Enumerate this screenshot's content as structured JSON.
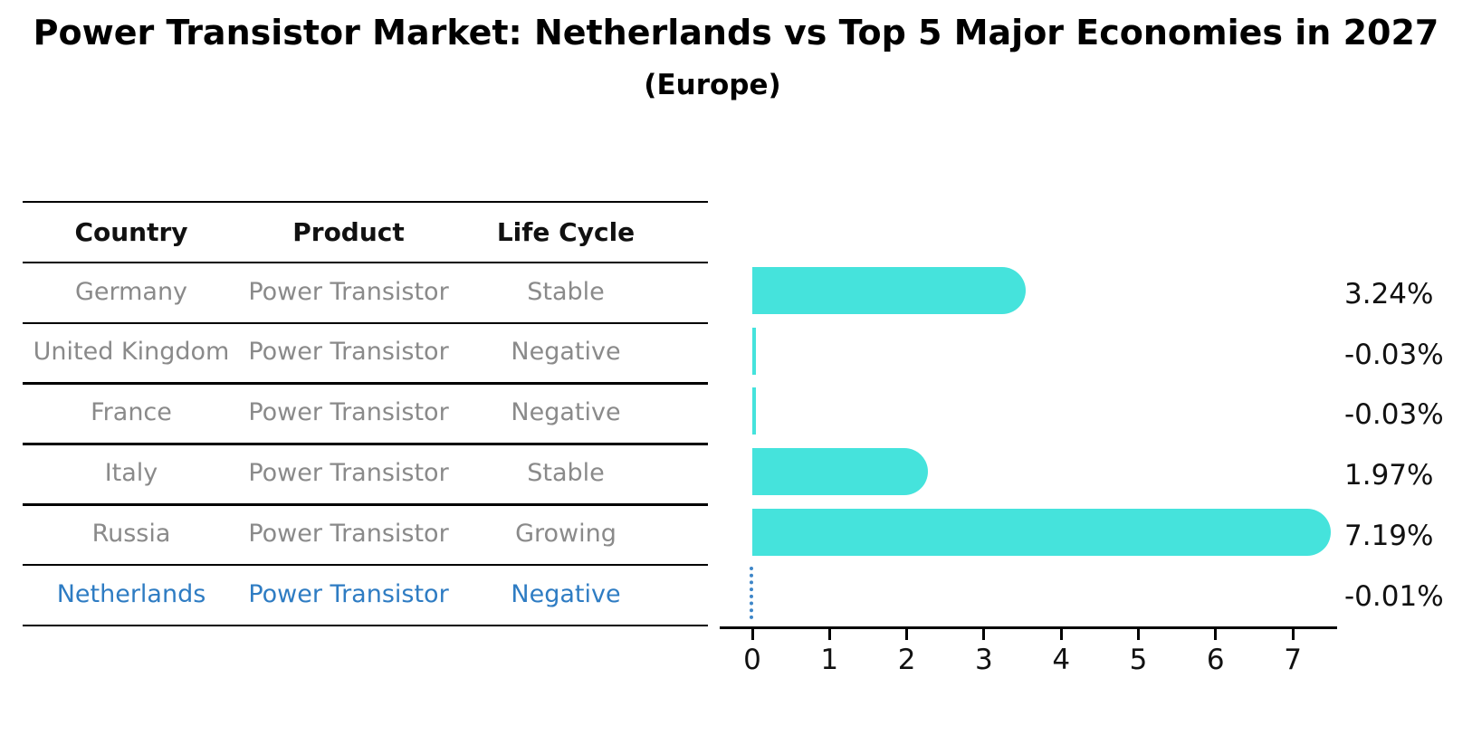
{
  "header": {
    "title": "Power Transistor Market: Netherlands vs Top 5 Major Economies in 2027",
    "subtitle": "(Europe)"
  },
  "table": {
    "columns": [
      "Country",
      "Product",
      "Life Cycle"
    ],
    "rows": [
      {
        "country": "Germany",
        "product": "Power Transistor",
        "life_cycle": "Stable",
        "highlighted": false
      },
      {
        "country": "United Kingdom",
        "product": "Power Transistor",
        "life_cycle": "Negative",
        "highlighted": false
      },
      {
        "country": "France",
        "product": "Power Transistor",
        "life_cycle": "Negative",
        "highlighted": false
      },
      {
        "country": "Italy",
        "product": "Power Transistor",
        "life_cycle": "Stable",
        "highlighted": false
      },
      {
        "country": "Russia",
        "product": "Power Transistor",
        "life_cycle": "Growing",
        "highlighted": false
      },
      {
        "country": "Netherlands",
        "product": "Power Transistor",
        "life_cycle": "Negative",
        "highlighted": true
      }
    ]
  },
  "chart_data": {
    "type": "bar",
    "orientation": "horizontal",
    "title": "Power Transistor Market: Netherlands vs Top 5 Major Economies in 2027",
    "subtitle": "(Europe)",
    "categories": [
      "Germany",
      "United Kingdom",
      "France",
      "Italy",
      "Russia",
      "Netherlands"
    ],
    "values": [
      3.24,
      -0.03,
      -0.03,
      1.97,
      7.19,
      -0.01
    ],
    "value_labels": [
      "3.24%",
      "-0.03%",
      "-0.03%",
      "1.97%",
      "7.19%",
      "-0.01%"
    ],
    "x_ticks": [
      "0",
      "1",
      "2",
      "3",
      "4",
      "5",
      "6",
      "7"
    ],
    "xlim": [
      -0.4,
      7.6
    ],
    "grid": false,
    "legend": "none",
    "bar_color": "#45e3dc",
    "highlight_index": 5,
    "highlight_marker": "dotted-vertical-line",
    "highlight_color": "#3e86c8",
    "xlabel": "",
    "ylabel": ""
  },
  "colors": {
    "background": "#ffffff",
    "bar_cyan": "#45e3dc",
    "accent_blue": "#2e7cc3",
    "muted_text": "#8a8a8a",
    "axis_black": "#000000"
  }
}
